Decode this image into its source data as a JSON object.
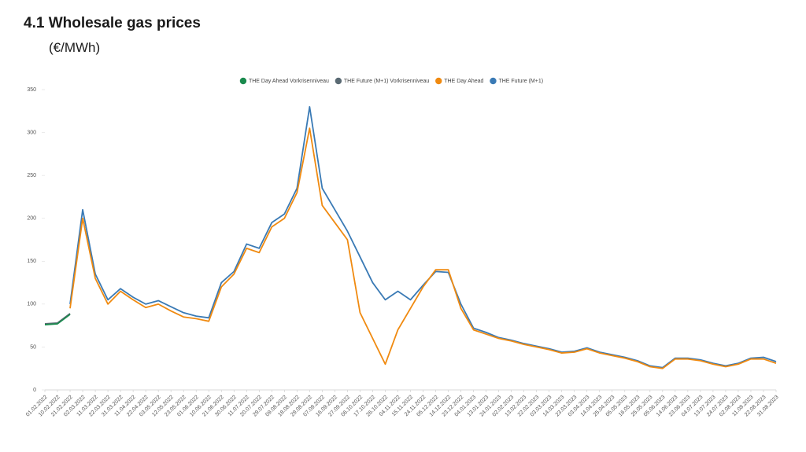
{
  "chart_data": {
    "type": "line",
    "title": "4.1 Wholesale gas prices",
    "subtitle": "(€/MWh)",
    "categories": [
      "01.02.2022",
      "10.02.2022",
      "21.02.2022",
      "02.03.2022",
      "11.03.2022",
      "22.03.2022",
      "31.03.2022",
      "11.04.2022",
      "22.04.2022",
      "03.05.2022",
      "12.05.2022",
      "23.05.2022",
      "01.06.2022",
      "10.06.2022",
      "21.06.2022",
      "30.06.2022",
      "11.07.2022",
      "20.07.2022",
      "29.07.2022",
      "09.08.2022",
      "18.08.2022",
      "29.08.2022",
      "07.09.2022",
      "16.09.2022",
      "27.09.2022",
      "06.10.2022",
      "17.10.2022",
      "26.10.2022",
      "04.11.2022",
      "15.11.2022",
      "24.11.2022",
      "05.12.2022",
      "14.12.2022",
      "23.12.2022",
      "04.01.2023",
      "13.01.2023",
      "24.01.2023",
      "02.02.2023",
      "13.02.2023",
      "22.02.2023",
      "03.03.2023",
      "14.03.2023",
      "23.03.2023",
      "03.04.2023",
      "14.04.2023",
      "25.04.2023",
      "05.05.2023",
      "16.05.2023",
      "25.05.2023",
      "05.06.2023",
      "14.06.2023",
      "23.06.2023",
      "04.07.2023",
      "13.07.2023",
      "24.07.2023",
      "02.08.2023",
      "11.08.2023",
      "22.08.2023",
      "31.08.2023"
    ],
    "series": [
      {
        "name": "THE Day Ahead Vorkrisenniveau",
        "color": "#1a8a4e",
        "values": [
          76,
          77,
          88,
          null,
          null,
          null,
          null,
          null,
          null,
          null,
          null,
          null,
          null,
          null,
          null,
          null,
          null,
          null,
          null,
          null,
          null,
          null,
          null,
          null,
          null,
          null,
          null,
          null,
          null,
          null,
          null,
          null,
          null,
          null,
          null,
          null,
          null,
          null,
          null,
          null,
          null,
          null,
          null,
          null,
          null,
          null,
          null,
          null,
          null,
          null,
          null,
          null,
          null,
          null,
          null,
          null,
          null,
          null,
          null
        ]
      },
      {
        "name": "THE Future (M+1) Vorkrisenniveau",
        "color": "#5a6a73",
        "values": [
          77,
          78,
          89,
          null,
          null,
          null,
          null,
          null,
          null,
          null,
          null,
          null,
          null,
          null,
          null,
          null,
          null,
          null,
          null,
          null,
          null,
          null,
          null,
          null,
          null,
          null,
          null,
          null,
          null,
          null,
          null,
          null,
          null,
          null,
          null,
          null,
          null,
          null,
          null,
          null,
          null,
          null,
          null,
          null,
          null,
          null,
          null,
          null,
          null,
          null,
          null,
          null,
          null,
          null,
          null,
          null,
          null,
          null,
          null
        ]
      },
      {
        "name": "THE Day Ahead",
        "color": "#f08a10",
        "values": [
          null,
          null,
          95,
          200,
          130,
          100,
          115,
          105,
          96,
          100,
          92,
          85,
          83,
          80,
          120,
          135,
          165,
          160,
          190,
          200,
          230,
          305,
          215,
          195,
          175,
          90,
          60,
          30,
          70,
          95,
          120,
          140,
          140,
          95,
          70,
          65,
          60,
          57,
          53,
          50,
          47,
          43,
          44,
          48,
          43,
          40,
          37,
          33,
          27,
          25,
          36,
          36,
          34,
          30,
          27,
          30,
          36,
          36,
          31
        ]
      },
      {
        "name": "THE Future (M+1)",
        "color": "#3a7ab5",
        "values": [
          null,
          null,
          100,
          210,
          135,
          105,
          118,
          108,
          100,
          104,
          97,
          90,
          86,
          84,
          125,
          138,
          170,
          165,
          195,
          205,
          235,
          330,
          235,
          210,
          185,
          155,
          125,
          105,
          115,
          105,
          122,
          138,
          137,
          100,
          72,
          67,
          61,
          58,
          54,
          51,
          48,
          44,
          45,
          49,
          44,
          41,
          38,
          34,
          28,
          26,
          37,
          37,
          35,
          31,
          28,
          31,
          37,
          38,
          33
        ]
      }
    ],
    "ylim": [
      0,
      350
    ],
    "yticks": [
      0,
      50,
      100,
      150,
      200,
      250,
      300,
      350
    ],
    "legend": "top",
    "grid": false
  }
}
